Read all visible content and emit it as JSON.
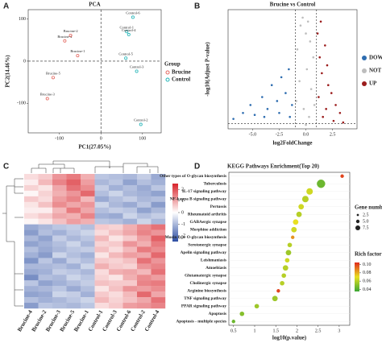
{
  "chart_data": [
    {
      "type": "scatter",
      "panel": "A",
      "title": "PCA",
      "xlabel": "PC1(27.05%)",
      "ylabel": "PC2(14.46%)",
      "xlim": [
        -175,
        145
      ],
      "ylim": [
        -170,
        122
      ],
      "xticks": [
        -100,
        0,
        100
      ],
      "yticks": [
        -100,
        0,
        100
      ],
      "reflines": {
        "x": 0,
        "y": 0
      },
      "legend_title": "Group",
      "series": [
        {
          "name": "Brucine",
          "color": "#e4675f",
          "labels": [
            "Brucine-4",
            "Brucine-2",
            "Brucine-1",
            "Brucine-5",
            "Brucine-3"
          ],
          "x": [
            -87,
            -73,
            -56,
            -115,
            -129
          ],
          "y": [
            48,
            61,
            13,
            -39,
            -89
          ]
        },
        {
          "name": "Control",
          "color": "#1fb3b6",
          "labels": [
            "Control-6",
            "Control-1",
            "Control-4",
            "Control-5",
            "Control-3",
            "Control-2"
          ],
          "x": [
            77,
            62,
            67,
            60,
            86,
            96
          ],
          "y": [
            104,
            70,
            63,
            7,
            -24,
            -150
          ]
        }
      ]
    },
    {
      "type": "volcano",
      "panel": "B",
      "title": "Brucine vs Control",
      "xlabel": "log2FoldChange",
      "ylabel": "-log10(Adjust P-value)",
      "xlim": [
        -7.3,
        4.8
      ],
      "ylim": [
        0,
        30
      ],
      "xticks": [
        {
          "value": -5,
          "label": "-5.0"
        },
        {
          "value": -2.5,
          "label": "-2.5"
        },
        {
          "value": 0,
          "label": "0.0"
        },
        {
          "value": 2.5,
          "label": "2.5"
        }
      ],
      "thresholds": {
        "x": [
          -1,
          1
        ],
        "y": 1.3
      },
      "series": [
        {
          "name": "DOWN",
          "color": "#2e6db0",
          "x": [
            -6.8,
            -5.9,
            -5.2,
            -4.8,
            -4.1,
            -3.6,
            -3.2,
            -2.7,
            -2.3,
            -1.9,
            -1.6,
            -1.3,
            -3.9,
            -2.5,
            -1.5
          ],
          "y": [
            2.5,
            4,
            6,
            3.5,
            8,
            5,
            11,
            7,
            13,
            9,
            15,
            6,
            3,
            4,
            3
          ]
        },
        {
          "name": "NOT",
          "color": "#bdbdbd",
          "x": [
            -0.8,
            -0.5,
            -0.3,
            0,
            0.2,
            0.4,
            0.7,
            -0.6,
            0.1,
            0.5,
            -0.2,
            0.3,
            -0.9,
            0.8,
            0
          ],
          "y": [
            20,
            26,
            28,
            24,
            27,
            22,
            18,
            12,
            15,
            10,
            5,
            3,
            7,
            6,
            1
          ]
        },
        {
          "name": "UP",
          "color": "#9b1c1c",
          "x": [
            1.1,
            1.3,
            1.5,
            1.8,
            2.1,
            2.4,
            2.8,
            3.2,
            1.2,
            1.6,
            2.0,
            1.4,
            2.6,
            3.5,
            1.9
          ],
          "y": [
            24,
            18,
            14,
            21,
            11,
            9,
            6,
            4,
            8,
            3,
            16,
            27,
            2,
            1.6,
            5
          ]
        }
      ]
    },
    {
      "type": "heatmap",
      "panel": "C",
      "columns": [
        "Brucine-4",
        "Brucine-2",
        "Brucine-3",
        "Brucine-5",
        "Brucine-1",
        "Control-1",
        "Control-3",
        "Control-6",
        "Control-2",
        "Control-4"
      ],
      "zlim": [
        -2.5,
        2.5
      ],
      "zticks": [
        2,
        1,
        0,
        -1,
        -2
      ],
      "colors": [
        "#2c4ea3",
        "#ffffff",
        "#d8232a"
      ],
      "values": [
        [
          0.4,
          0.6,
          1.2,
          1.5,
          0.9,
          -0.8,
          -0.9,
          -1.0,
          -0.7,
          -1.2
        ],
        [
          0.2,
          0.8,
          1.4,
          1.8,
          1.1,
          -1.0,
          -0.8,
          -1.3,
          -0.9,
          -1.1
        ],
        [
          0.5,
          0.3,
          1.0,
          1.6,
          1.3,
          -0.7,
          -1.1,
          -0.9,
          -1.2,
          -0.8
        ],
        [
          0.1,
          0.5,
          0.9,
          1.2,
          1.7,
          -0.9,
          -0.6,
          -1.0,
          -1.1,
          -1.3
        ],
        [
          0.6,
          0.4,
          1.1,
          1.4,
          0.8,
          -1.2,
          -0.9,
          -0.7,
          -1.0,
          -0.9
        ],
        [
          0.3,
          0.7,
          1.3,
          1.0,
          1.2,
          -0.6,
          -1.0,
          -1.2,
          -0.8,
          -1.4
        ],
        [
          0.2,
          0.2,
          0.8,
          1.5,
          1.0,
          -0.9,
          -0.7,
          -0.8,
          -1.3,
          -1.0
        ],
        [
          0.4,
          0.6,
          1.0,
          0.9,
          1.4,
          -1.1,
          -1.2,
          -0.6,
          -0.9,
          -0.7
        ],
        [
          0.1,
          0.3,
          0.7,
          1.1,
          0.9,
          -0.8,
          -0.9,
          -1.1,
          -0.6,
          -1.0
        ],
        [
          -1.2,
          -1.0,
          -0.8,
          -0.7,
          -0.9,
          0.6,
          0.5,
          0.9,
          1.3,
          1.6
        ],
        [
          -1.4,
          -0.9,
          -1.1,
          -0.8,
          -0.6,
          0.4,
          0.7,
          1.0,
          1.4,
          1.2
        ],
        [
          -1.0,
          -1.3,
          -0.7,
          -1.0,
          -0.8,
          0.8,
          0.3,
          0.6,
          1.1,
          1.8
        ],
        [
          -1.3,
          -1.1,
          -0.9,
          -0.6,
          -1.0,
          0.5,
          0.6,
          1.2,
          0.9,
          1.5
        ],
        [
          -0.9,
          -1.2,
          -1.0,
          -0.8,
          -0.7,
          0.7,
          0.4,
          0.8,
          1.5,
          1.3
        ],
        [
          -1.1,
          -1.4,
          -0.6,
          -0.9,
          -1.1,
          0.3,
          0.8,
          1.1,
          1.0,
          1.7
        ],
        [
          -1.5,
          -0.8,
          -1.2,
          -0.7,
          -0.9,
          0.6,
          0.5,
          0.7,
          1.6,
          1.2
        ],
        [
          -1.0,
          -1.0,
          -0.9,
          -1.1,
          -0.6,
          0.9,
          0.6,
          0.5,
          1.2,
          1.4
        ],
        [
          -1.2,
          -1.1,
          -0.7,
          -0.8,
          -1.0,
          0.4,
          0.9,
          1.0,
          0.8,
          1.6
        ],
        [
          -1.6,
          -0.9,
          -1.0,
          -0.6,
          -0.8,
          0.5,
          0.3,
          0.9,
          1.3,
          1.1
        ],
        [
          -0.8,
          -1.3,
          -1.1,
          -0.9,
          -0.7,
          0.7,
          0.6,
          0.6,
          1.4,
          1.5
        ],
        [
          -1.1,
          -1.0,
          -0.8,
          -1.2,
          -0.9,
          0.3,
          0.7,
          1.2,
          1.1,
          1.3
        ],
        [
          -1.3,
          -1.2,
          -0.6,
          -0.7,
          -1.1,
          0.6,
          0.4,
          0.8,
          1.7,
          1.0
        ],
        [
          -0.9,
          -1.1,
          -1.0,
          -0.8,
          -0.6,
          0.8,
          0.5,
          0.7,
          1.0,
          1.6
        ],
        [
          -1.4,
          -0.8,
          -0.9,
          -1.0,
          -0.8,
          0.4,
          0.6,
          1.1,
          1.2,
          1.4
        ]
      ]
    },
    {
      "type": "dot",
      "panel": "D",
      "title": "KEGG Pathways Enrichment(Top 20)",
      "xlabel": "log10(p.value)",
      "xlim": [
        0.39,
        3.25
      ],
      "xticks": [
        0.5,
        1,
        1.5,
        2,
        2.5,
        3
      ],
      "categories": [
        "Other types of O-glycan biosynthesis",
        "Tuberculosis",
        "IL-17 signaling pathway",
        "NF-kappa B signaling pathway",
        "Pertussis",
        "Rheumatoid arthritis",
        "GABAergic synapse",
        "Morphine addiction",
        "Mucin type O-glycan biosynthesis",
        "Serotonergic synapse",
        "Apelin signaling pathway",
        "Leishmaniasis",
        "Amoebiasis",
        "Glutamatergic synapse",
        "Cholinergic synapse",
        "Arginine biosynthesis",
        "TNF signaling pathway",
        "PPAR signaling pathway",
        "Apoptosis",
        "Apoptosis - multiple species"
      ],
      "category_colors": [
        "#222222",
        "#222222",
        "#222222",
        "#e0201a",
        "#222222",
        "#222222",
        "#222222",
        "#222222",
        "#222222",
        "#222222",
        "#222222",
        "#222222",
        "#222222",
        "#222222",
        "#222222",
        "#222222",
        "#222222",
        "#e0201a",
        "#e0201a",
        "#e0201a"
      ],
      "values": [
        3.07,
        2.57,
        2.3,
        2.2,
        2.1,
        2.05,
        1.97,
        1.93,
        1.9,
        1.83,
        1.8,
        1.77,
        1.73,
        1.69,
        1.65,
        1.56,
        1.48,
        1.05,
        0.7,
        0.5
      ],
      "sizes": [
        2,
        7,
        5,
        5,
        4,
        4,
        4,
        4,
        2,
        3,
        4,
        3,
        4,
        3,
        3,
        2,
        4,
        3,
        3,
        2
      ],
      "rich_factor": [
        0.1,
        0.045,
        0.065,
        0.06,
        0.065,
        0.06,
        0.07,
        0.065,
        0.085,
        0.06,
        0.055,
        0.065,
        0.06,
        0.06,
        0.06,
        0.1,
        0.055,
        0.055,
        0.05,
        0.045
      ],
      "size_legend": {
        "title": "Gene number",
        "values": [
          2.5,
          {
            "value": 5,
            "label": "5.0"
          },
          7.5
        ]
      },
      "color_legend": {
        "title": "Rich factor",
        "lim": [
          0.035,
          0.105
        ],
        "colors": [
          "#3aa635",
          "#e8e020",
          "#e02a1c"
        ],
        "ticks": [
          {
            "value": 0.1,
            "label": "0.10"
          },
          0.08,
          0.06,
          0.04
        ]
      }
    }
  ]
}
